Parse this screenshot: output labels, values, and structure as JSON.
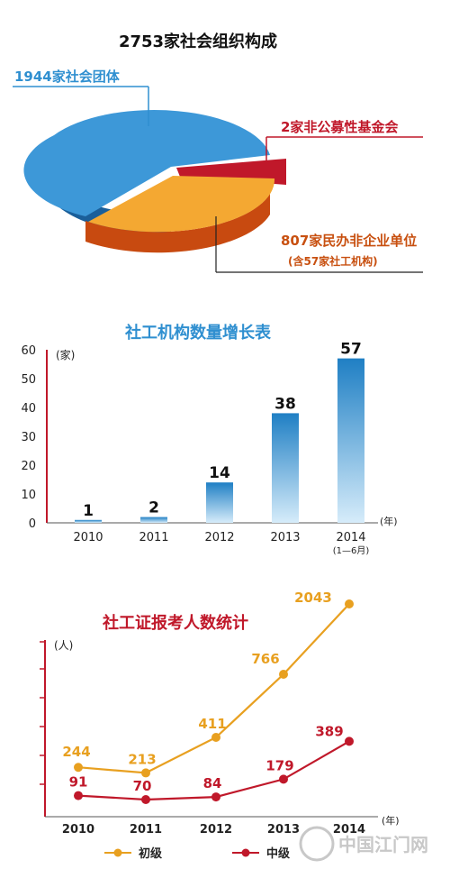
{
  "chart_data": [
    {
      "type": "pie",
      "title": "2753家社会组织构成",
      "slices": [
        {
          "label": "1944家社会团体",
          "value": 1944,
          "color": "#2f8fd0"
        },
        {
          "label": "2家非公募性基金会",
          "value": 2,
          "color": "#c0182a"
        },
        {
          "label": "807家民办非企业单位",
          "sublabel": "(含57家社工机构)",
          "value": 807,
          "color": "#f0a020"
        }
      ]
    },
    {
      "type": "bar",
      "title": "社工机构数量增长表",
      "categories": [
        "2010",
        "2011",
        "2012",
        "2013",
        "2014"
      ],
      "category_notes": [
        "",
        "",
        "",
        "",
        "(1—6月)"
      ],
      "values": [
        1,
        2,
        14,
        38,
        57
      ],
      "ylim": [
        0,
        60
      ],
      "yticks": [
        0,
        10,
        20,
        30,
        40,
        50,
        60
      ],
      "yunit": "(家)",
      "xunit": "(年)",
      "color": "#2f8fd0"
    },
    {
      "type": "line",
      "title": "社工证报考人数统计",
      "categories": [
        "2010",
        "2011",
        "2012",
        "2013",
        "2014"
      ],
      "yunit": "(人)",
      "xunit": "(年)",
      "series": [
        {
          "name": "初级",
          "values": [
            244,
            213,
            411,
            766,
            2043
          ],
          "color": "#e8a020"
        },
        {
          "name": "中级",
          "values": [
            91,
            70,
            84,
            179,
            389
          ],
          "color": "#c0182a"
        }
      ]
    }
  ],
  "watermark": "中国江门网"
}
